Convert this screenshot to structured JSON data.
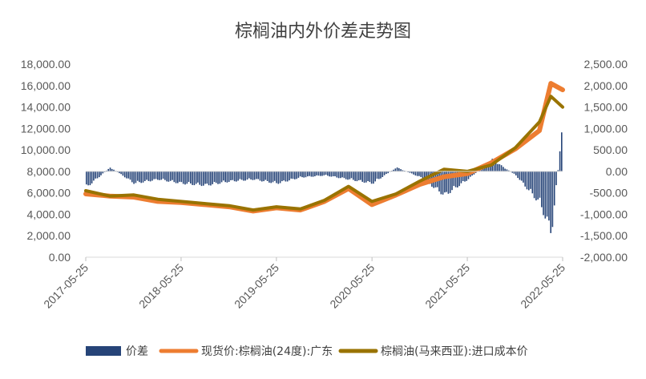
{
  "chart_data": {
    "type": "line",
    "title": "棕榈油内外价差走势图",
    "x_ticks": [
      "2017-05-25",
      "2018-05-25",
      "2019-05-25",
      "2020-05-25",
      "2021-05-25",
      "2022-05-25"
    ],
    "y_left": {
      "range": [
        0,
        18000
      ],
      "ticks": [
        "0.00",
        "2,000.00",
        "4,000.00",
        "6,000.00",
        "8,000.00",
        "10,000.00",
        "12,000.00",
        "14,000.00",
        "16,000.00",
        "18,000.00"
      ]
    },
    "y_right": {
      "range": [
        -2000,
        2500
      ],
      "ticks": [
        "-2,000.00",
        "-1,500.00",
        "-1,000.00",
        "-500.00",
        "0.00",
        "500.00",
        "1,000.00",
        "1,500.00",
        "2,000.00",
        "2,500.00"
      ]
    },
    "grid": false,
    "legend_position": "bottom",
    "series": [
      {
        "name": "价差",
        "kind": "bar",
        "axis": "right",
        "color": "#264478",
        "x": [
          "2017-05-25",
          "2017-08-25",
          "2017-11-25",
          "2018-02-25",
          "2018-05-25",
          "2018-08-25",
          "2018-11-25",
          "2019-02-25",
          "2019-05-25",
          "2019-08-25",
          "2019-11-25",
          "2020-02-25",
          "2020-05-25",
          "2020-08-25",
          "2020-11-25",
          "2021-02-25",
          "2021-05-25",
          "2021-08-25",
          "2021-11-25",
          "2022-02-25",
          "2022-04-10",
          "2022-05-25"
        ],
        "values": [
          -400,
          100,
          -300,
          -200,
          -300,
          -350,
          -250,
          -200,
          -300,
          -150,
          -100,
          -200,
          -300,
          100,
          -150,
          -600,
          -200,
          300,
          -100,
          -800,
          -1550,
          1300
        ]
      },
      {
        "name": "现货价:棕榈油(24度):广东",
        "kind": "line",
        "axis": "left",
        "color": "#ED7D31",
        "x": [
          "2017-05-25",
          "2017-08-25",
          "2017-11-25",
          "2018-02-25",
          "2018-05-25",
          "2018-08-25",
          "2018-11-25",
          "2019-02-25",
          "2019-05-25",
          "2019-08-25",
          "2019-11-25",
          "2020-02-25",
          "2020-05-25",
          "2020-08-25",
          "2020-11-25",
          "2021-02-25",
          "2021-05-25",
          "2021-08-25",
          "2021-11-25",
          "2022-02-25",
          "2022-04-10",
          "2022-05-25"
        ],
        "values": [
          5900,
          5700,
          5600,
          5200,
          5100,
          4900,
          4700,
          4300,
          4600,
          4400,
          5200,
          6400,
          4900,
          5800,
          6800,
          7500,
          7800,
          8800,
          10100,
          11800,
          16200,
          15600
        ]
      },
      {
        "name": "棕榈油(马来西亚):进口成本价",
        "kind": "line",
        "axis": "left",
        "color": "#997300",
        "x": [
          "2017-05-25",
          "2017-08-25",
          "2017-11-25",
          "2018-02-25",
          "2018-05-25",
          "2018-08-25",
          "2018-11-25",
          "2019-02-25",
          "2019-05-25",
          "2019-08-25",
          "2019-11-25",
          "2020-02-25",
          "2020-05-25",
          "2020-08-25",
          "2020-11-25",
          "2021-02-25",
          "2021-05-25",
          "2021-08-25",
          "2021-11-25",
          "2022-02-25",
          "2022-04-10",
          "2022-05-25"
        ],
        "values": [
          6200,
          5700,
          5800,
          5400,
          5200,
          5000,
          4800,
          4400,
          4700,
          4500,
          5300,
          6600,
          5200,
          5900,
          7100,
          8200,
          8000,
          8600,
          10200,
          12600,
          15000,
          14000
        ]
      }
    ]
  }
}
